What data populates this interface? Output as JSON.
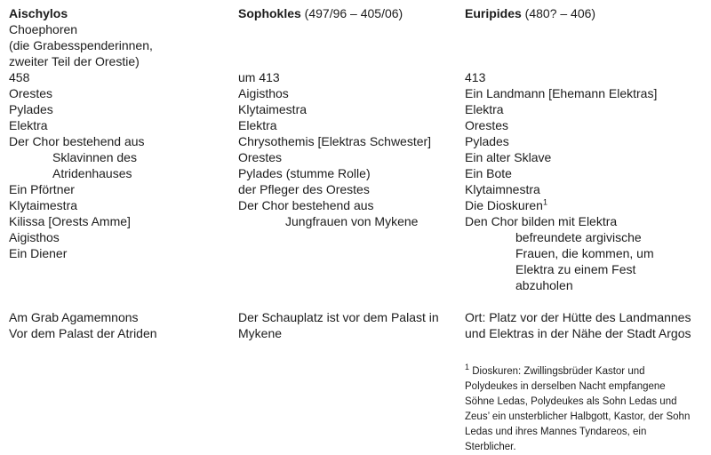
{
  "page": {
    "background": "#ffffff",
    "text_color": "#1c1c1c"
  },
  "columns": [
    {
      "key": "aischylos",
      "author": "Aischylos",
      "lines": [
        {
          "text": "Aischylos",
          "bold": true
        },
        {
          "text": "Choephoren"
        },
        {
          "text": "(die Grabesspenderinnen,"
        },
        {
          "text": "zweiter Teil der Orestie)"
        },
        {
          "text": "458"
        },
        {
          "text": "Orestes"
        },
        {
          "text": "Pylades"
        },
        {
          "text": "Elektra"
        },
        {
          "text": "Der Chor bestehend aus"
        },
        {
          "text": "Sklavinnen des",
          "indent": 1
        },
        {
          "text": "Atridenhauses",
          "indent": 1
        },
        {
          "text": "Ein Pförtner"
        },
        {
          "text": "Klytaimestra"
        },
        {
          "text": "Kilissa [Orests Amme]"
        },
        {
          "text": "Aigisthos"
        },
        {
          "text": "Ein Diener"
        },
        {
          "text": ""
        },
        {
          "text": ""
        },
        {
          "text": ""
        },
        {
          "text": "Am Grab Agamemnons"
        },
        {
          "text": "Vor dem Palast der Atriden"
        }
      ]
    },
    {
      "key": "sophokles",
      "author": "Sophokles",
      "lines": [
        {
          "segments": [
            {
              "text": "Sophokles",
              "bold": true
            },
            {
              "text": " (497/96 – 405/06)"
            }
          ]
        },
        {
          "text": ""
        },
        {
          "text": ""
        },
        {
          "text": ""
        },
        {
          "text": "um 413"
        },
        {
          "text": "Aigisthos"
        },
        {
          "text": "Klytaimestra"
        },
        {
          "text": "Elektra"
        },
        {
          "text": "Chrysothemis [Elektras Schwester]"
        },
        {
          "text": "Orestes"
        },
        {
          "text": "Pylades (stumme Rolle)"
        },
        {
          "text": "der Pfleger des Orestes"
        },
        {
          "text": "Der Chor bestehend aus"
        },
        {
          "text": "Jungfrauen von Mykene",
          "indent": 1
        },
        {
          "text": ""
        },
        {
          "text": ""
        },
        {
          "text": ""
        },
        {
          "text": ""
        },
        {
          "text": ""
        },
        {
          "text": "Der Schauplatz ist vor dem Palast in"
        },
        {
          "text": "Mykene"
        }
      ]
    },
    {
      "key": "euripides",
      "author": "Euripides",
      "lines": [
        {
          "segments": [
            {
              "text": "Euripides",
              "bold": true
            },
            {
              "text": " (480? – 406)"
            }
          ]
        },
        {
          "text": ""
        },
        {
          "text": ""
        },
        {
          "text": ""
        },
        {
          "text": "413"
        },
        {
          "text": "Ein Landmann [Ehemann Elektras]"
        },
        {
          "text": "Elektra"
        },
        {
          "text": "Orestes"
        },
        {
          "text": "Pylades"
        },
        {
          "text": "Ein alter Sklave"
        },
        {
          "text": "Ein Bote"
        },
        {
          "text": "Klytaimnestra"
        },
        {
          "text": "Die Dioskuren",
          "sup": "1"
        },
        {
          "text": "Den Chor bilden mit Elektra"
        },
        {
          "text": "befreundete argivische",
          "indent": 1
        },
        {
          "text": "Frauen, die kommen, um",
          "indent": 1
        },
        {
          "text": "Elektra zu einem Fest",
          "indent": 1
        },
        {
          "text": "abzuholen",
          "indent": 1
        },
        {
          "text": ""
        },
        {
          "text": "Ort: Platz vor der Hütte des Landmannes"
        },
        {
          "text": "und Elektras in der Nähe der Stadt Argos"
        }
      ],
      "footnote": {
        "marker": "1",
        "lines": [
          "Dioskuren: Zwillingsbrüder Kastor und",
          "Polydeukes in derselben Nacht empfangene",
          "Söhne Ledas, Polydeukes als Sohn Ledas und",
          "Zeus’ ein unsterblicher Halbgott, Kastor, der Sohn",
          "Ledas und ihres Mannes Tyndareos, ein",
          "Sterblicher."
        ]
      }
    }
  ]
}
